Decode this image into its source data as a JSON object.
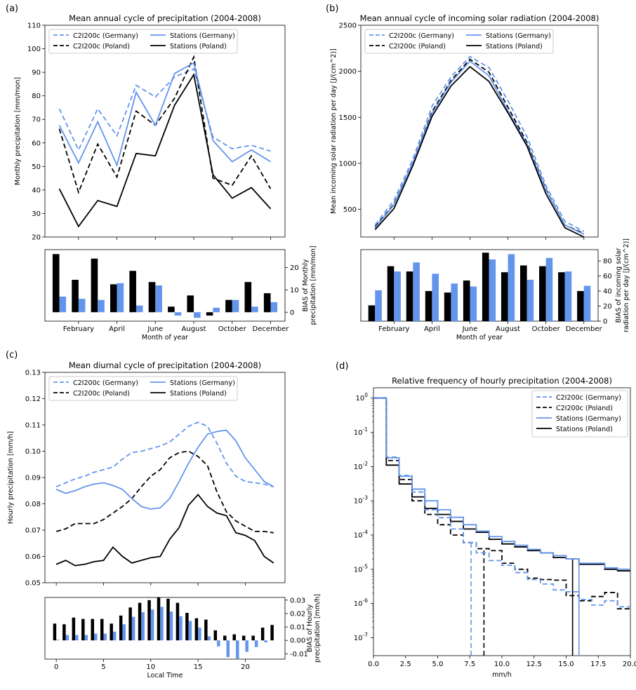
{
  "panels": {
    "a": "(a)",
    "b": "(b)",
    "c": "(c)",
    "d": "(d)"
  },
  "legend_labels": {
    "model_de": "C2I200c (Germany)",
    "model_pl": "C2I200c (Poland)",
    "stat_de": "Stations (Germany)",
    "stat_pl": "Stations (Poland)"
  },
  "colors": {
    "germany": "#6495ed",
    "poland": "#000000"
  },
  "chart_data": [
    {
      "id": "a",
      "type": "line",
      "title": "Mean annual cycle of precipitation (2004-2008)",
      "xlabel": "",
      "ylabel": "Monthly precipitation [mm/mon]",
      "x": [
        1,
        2,
        3,
        4,
        5,
        6,
        7,
        8,
        9,
        10,
        11,
        12
      ],
      "ylim": [
        20,
        110
      ],
      "yticks": [
        20,
        30,
        40,
        50,
        60,
        70,
        80,
        90,
        100,
        110
      ],
      "legend": "top-left",
      "series": [
        {
          "name": "C2I200c (Germany)",
          "style": "dashed",
          "color": "#6495ed",
          "values": [
            74.5,
            57,
            74.5,
            63,
            84.5,
            79.5,
            88,
            91.5,
            62.5,
            57.5,
            59,
            56.5
          ]
        },
        {
          "name": "C2I200c (Poland)",
          "style": "dashed",
          "color": "#000000",
          "values": [
            66,
            39,
            59.5,
            45.5,
            73.5,
            67.5,
            79,
            96.5,
            45,
            42,
            54.5,
            40.5
          ]
        },
        {
          "name": "Stations (Germany)",
          "style": "solid",
          "color": "#6495ed",
          "values": [
            67.5,
            51.5,
            69,
            50.5,
            81.5,
            67.5,
            89.5,
            94,
            61,
            52,
            57,
            52
          ]
        },
        {
          "name": "Stations (Poland)",
          "style": "solid",
          "color": "#000000",
          "values": [
            40.5,
            24.5,
            35.5,
            33,
            55.5,
            54.5,
            76,
            89,
            46.5,
            36.5,
            41,
            32
          ]
        }
      ]
    },
    {
      "id": "a-bias",
      "type": "bar",
      "xlabel": "Month of year",
      "ylabel": "BIAS of Monthly precipitation [mm/mon]",
      "categories": [
        1,
        2,
        3,
        4,
        5,
        6,
        7,
        8,
        9,
        10,
        11,
        12
      ],
      "xticklabels": [
        "February",
        "April",
        "June",
        "August",
        "October",
        "December"
      ],
      "xtickpos": [
        2,
        4,
        6,
        8,
        10,
        12
      ],
      "ylim": [
        -4,
        28
      ],
      "yticks": [
        0,
        10,
        20
      ],
      "series": [
        {
          "name": "",
          "color": "#000000",
          "values": [
            26,
            14.5,
            24,
            12.5,
            18.5,
            13.5,
            2.5,
            7.5,
            -1.5,
            5.5,
            13.5,
            8.5
          ]
        },
        {
          "name": "",
          "color": "#6495ed",
          "values": [
            7,
            6,
            5.5,
            13,
            3,
            12,
            -1.5,
            -2.5,
            2,
            5.5,
            2.5,
            4.5
          ]
        }
      ]
    },
    {
      "id": "b",
      "type": "line",
      "title": "Mean annual cycle of incoming solar radiation (2004-2008)",
      "xlabel": "",
      "ylabel": "Mean incoming solar radiation per day [J/(cm^2)]",
      "x": [
        1,
        2,
        3,
        4,
        5,
        6,
        7,
        8,
        9,
        10,
        11,
        12
      ],
      "ylim": [
        200,
        2500
      ],
      "yticks": [
        500,
        1000,
        1500,
        2000,
        2500
      ],
      "legend": "top-left",
      "series": [
        {
          "name": "C2I200c (Germany)",
          "style": "dashed",
          "color": "#6495ed",
          "values": [
            330,
            600,
            1050,
            1620,
            1940,
            2160,
            2040,
            1680,
            1290,
            760,
            370,
            260
          ]
        },
        {
          "name": "C2I200c (Poland)",
          "style": "dashed",
          "color": "#000000",
          "values": [
            310,
            560,
            1010,
            1560,
            1900,
            2130,
            1990,
            1610,
            1230,
            720,
            330,
            240
          ]
        },
        {
          "name": "Stations (Germany)",
          "style": "solid",
          "color": "#6495ed",
          "values": [
            300,
            550,
            1010,
            1540,
            1880,
            2110,
            1950,
            1570,
            1210,
            710,
            330,
            230
          ]
        },
        {
          "name": "Stations (Poland)",
          "style": "solid",
          "color": "#000000",
          "values": [
            280,
            510,
            980,
            1510,
            1840,
            2050,
            1890,
            1550,
            1190,
            670,
            300,
            200
          ]
        }
      ]
    },
    {
      "id": "b-bias",
      "type": "bar",
      "xlabel": "Month of year",
      "ylabel": "BIAS of incoming solar radiation per day [J/(cm^2)]",
      "categories": [
        1,
        2,
        3,
        4,
        5,
        6,
        7,
        8,
        9,
        10,
        11,
        12
      ],
      "xticklabels": [
        "February",
        "April",
        "June",
        "August",
        "October",
        "December"
      ],
      "xtickpos": [
        2,
        4,
        6,
        8,
        10,
        12
      ],
      "ylim": [
        0,
        95
      ],
      "yticks": [
        0,
        20,
        40,
        60,
        80
      ],
      "series": [
        {
          "name": "",
          "color": "#000000",
          "values": [
            21,
            73,
            66,
            40,
            38,
            54,
            91,
            65,
            74,
            73,
            65,
            40
          ]
        },
        {
          "name": "",
          "color": "#6495ed",
          "values": [
            41,
            66,
            78,
            63,
            50,
            46,
            82,
            89,
            55,
            84,
            66,
            47
          ]
        }
      ]
    },
    {
      "id": "c",
      "type": "line",
      "title": "Mean diurnal cycle of precipitation (2004-2008)",
      "xlabel": "",
      "ylabel": "Hourly precipitation [mm/h]",
      "x": [
        0,
        1,
        2,
        3,
        4,
        5,
        6,
        7,
        8,
        9,
        10,
        11,
        12,
        13,
        14,
        15,
        16,
        17,
        18,
        19,
        20,
        21,
        22,
        23
      ],
      "ylim": [
        0.05,
        0.13
      ],
      "yticks": [
        0.05,
        0.06,
        0.07,
        0.08,
        0.09,
        0.1,
        0.11,
        0.12,
        0.13
      ],
      "legend": "top-left",
      "series": [
        {
          "name": "C2I200c (Germany)",
          "style": "dashed",
          "color": "#6495ed",
          "values": [
            0.0865,
            0.088,
            0.0895,
            0.0905,
            0.092,
            0.093,
            0.094,
            0.097,
            0.0995,
            0.1,
            0.101,
            0.102,
            0.1035,
            0.1065,
            0.1095,
            0.111,
            0.1095,
            0.103,
            0.0955,
            0.0905,
            0.0885,
            0.088,
            0.0875,
            0.0865
          ]
        },
        {
          "name": "C2I200c (Poland)",
          "style": "dashed",
          "color": "#000000",
          "values": [
            0.0695,
            0.0705,
            0.0725,
            0.0725,
            0.0725,
            0.074,
            0.0765,
            0.079,
            0.082,
            0.0865,
            0.0905,
            0.093,
            0.0975,
            0.0995,
            0.1,
            0.098,
            0.0945,
            0.0845,
            0.077,
            0.0735,
            0.0715,
            0.0695,
            0.0695,
            0.069
          ]
        },
        {
          "name": "Stations (Germany)",
          "style": "solid",
          "color": "#6495ed",
          "values": [
            0.0855,
            0.084,
            0.085,
            0.0865,
            0.0875,
            0.088,
            0.087,
            0.0855,
            0.082,
            0.079,
            0.078,
            0.0785,
            0.082,
            0.0885,
            0.0955,
            0.1015,
            0.1065,
            0.1075,
            0.108,
            0.104,
            0.0975,
            0.093,
            0.0885,
            0.0865
          ]
        },
        {
          "name": "Stations (Poland)",
          "style": "solid",
          "color": "#000000",
          "values": [
            0.057,
            0.0585,
            0.0565,
            0.057,
            0.058,
            0.0585,
            0.0635,
            0.06,
            0.0575,
            0.0585,
            0.0595,
            0.06,
            0.0665,
            0.071,
            0.0795,
            0.0835,
            0.079,
            0.0765,
            0.0755,
            0.069,
            0.068,
            0.066,
            0.06,
            0.0575
          ]
        }
      ]
    },
    {
      "id": "c-bias",
      "type": "bar",
      "xlabel": "Local Time",
      "ylabel": "BIAS of Hourly precipitation [mm/h]",
      "categories": [
        0,
        1,
        2,
        3,
        4,
        5,
        6,
        7,
        8,
        9,
        10,
        11,
        12,
        13,
        14,
        15,
        16,
        17,
        18,
        19,
        20,
        21,
        22,
        23
      ],
      "xticks": [
        0,
        5,
        10,
        15,
        20
      ],
      "ylim": [
        -0.014,
        0.032
      ],
      "yticks": [
        -0.01,
        0.0,
        0.01,
        0.02,
        0.03
      ],
      "series": [
        {
          "name": "",
          "color": "#000000",
          "values": [
            0.0125,
            0.012,
            0.017,
            0.016,
            0.016,
            0.016,
            0.0125,
            0.0185,
            0.0245,
            0.028,
            0.03,
            0.032,
            0.031,
            0.028,
            0.0205,
            0.0165,
            0.0155,
            0.0075,
            0.0035,
            0.0045,
            0.0035,
            0.0035,
            0.0095,
            0.0115
          ]
        },
        {
          "name": "",
          "color": "#6495ed",
          "values": [
            0.0005,
            0.004,
            0.004,
            0.004,
            0.005,
            0.005,
            0.0065,
            0.012,
            0.0175,
            0.021,
            0.023,
            0.025,
            0.0215,
            0.018,
            0.0145,
            0.0095,
            0.003,
            -0.0045,
            -0.0125,
            -0.0135,
            -0.0085,
            -0.005,
            -0.0015,
            0.0
          ]
        }
      ]
    },
    {
      "id": "d",
      "type": "line",
      "title": "Relative frequency of hourly precipitation (2004-2008)",
      "xlabel": "mm/h",
      "ylabel": "",
      "ylog": true,
      "xlim": [
        0,
        20
      ],
      "xticks": [
        0,
        2.5,
        5,
        7.5,
        10,
        12.5,
        15,
        17.5,
        20
      ],
      "xticklabels": [
        "0.0",
        "2.5",
        "5.0",
        "7.5",
        "10.0",
        "12.5",
        "15.0",
        "17.5",
        "20.0"
      ],
      "ylim": [
        3e-08,
        2
      ],
      "yticks_exp": [
        -7,
        -6,
        -5,
        -4,
        -3,
        -2,
        -1,
        0
      ],
      "legend": "top-right",
      "series": [
        {
          "name": "C2I200c (Germany)",
          "style": "dashed",
          "color": "#6495ed",
          "cutoff": 7.6,
          "values": [
            1,
            0.019,
            0.0055,
            0.0018,
            0.00055,
            0.00032,
            0.00015,
            6e-05,
            3e-05,
            1.8e-05,
            1.3e-05,
            8e-06,
            5e-06,
            3.7e-06,
            2.5e-06,
            2.2e-06,
            1.3e-06,
            9e-07,
            1.2e-06,
            8e-07
          ]
        },
        {
          "name": "C2I200c (Poland)",
          "style": "dashed",
          "color": "#000000",
          "cutoff": 8.6,
          "values": [
            1,
            0.015,
            0.0042,
            0.001,
            0.0004,
            0.0002,
            0.0001,
            6e-05,
            4e-05,
            3.5e-05,
            1.5e-05,
            1e-05,
            5.5e-06,
            5e-06,
            4.8e-06,
            1.7e-06,
            1.2e-06,
            1.6e-06,
            2.1e-06,
            7e-07
          ]
        },
        {
          "name": "Stations (Germany)",
          "style": "solid",
          "color": "#6495ed",
          "cutoff": 16.0,
          "values": [
            1,
            0.018,
            0.0052,
            0.0022,
            0.001,
            0.00055,
            0.00033,
            0.0002,
            0.00013,
            9e-05,
            6.5e-05,
            5e-05,
            3.8e-05,
            3e-05,
            2.5e-05,
            2e-05,
            1.5e-05,
            1.5e-05,
            1.1e-05,
            1e-05
          ]
        },
        {
          "name": "Stations (Poland)",
          "style": "solid",
          "color": "#000000",
          "cutoff": 15.5,
          "values": [
            1,
            0.011,
            0.0031,
            0.0013,
            0.0006,
            0.0004,
            0.00025,
            0.00015,
            0.00012,
            7.5e-05,
            5.5e-05,
            4.5e-05,
            3.5e-05,
            3e-05,
            2.2e-05,
            2e-05,
            1.4e-05,
            1.4e-05,
            1e-05,
            9e-06
          ]
        }
      ]
    }
  ]
}
